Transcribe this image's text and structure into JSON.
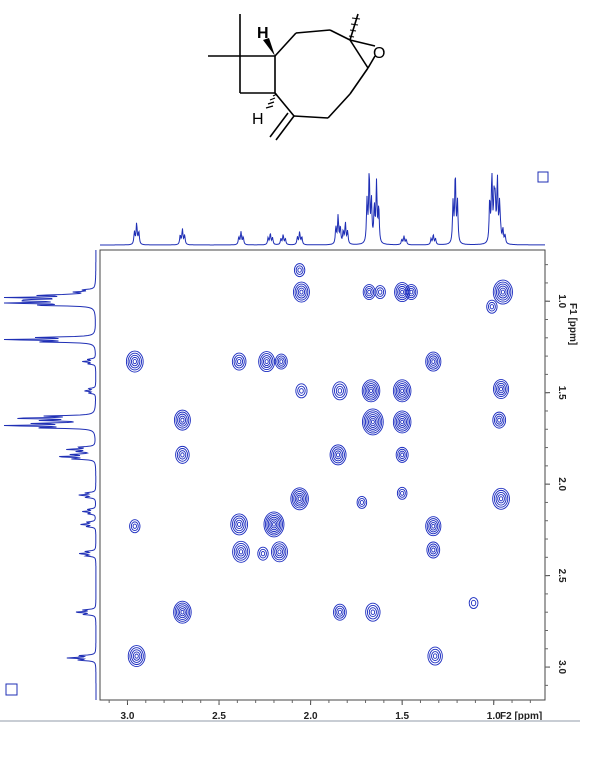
{
  "colors": {
    "trace": "#1f2fb5",
    "contour": "#1a2bbf",
    "axis": "#222222"
  },
  "molecule": {
    "atom_labels": {
      "h_top": "H",
      "h_bottom": "H",
      "oxygen": "O"
    }
  },
  "chart_data": {
    "type": "2d-nmr-cosy",
    "x_axis": {
      "label": "F2 [ppm]",
      "reversed": true,
      "range": [
        3.15,
        0.72
      ],
      "ticks": [
        3.0,
        2.5,
        2.0,
        1.5,
        1.0
      ],
      "tick_labels": [
        "3.0",
        "2.5",
        "2.0",
        "1.5",
        "1.0"
      ]
    },
    "y_axis": {
      "label": "F1 [ppm]",
      "range": [
        0.72,
        3.18
      ],
      "ticks": [
        1.0,
        1.5,
        2.0,
        2.5,
        3.0
      ],
      "tick_labels": [
        "1.0",
        "1.5",
        "2.0",
        "2.5",
        "3.0"
      ]
    },
    "f2_projection_peaks": [
      {
        "ppm": 2.95,
        "h": 0.3
      },
      {
        "ppm": 2.7,
        "h": 0.22
      },
      {
        "ppm": 2.38,
        "h": 0.18
      },
      {
        "ppm": 2.22,
        "h": 0.16
      },
      {
        "ppm": 2.15,
        "h": 0.14
      },
      {
        "ppm": 2.06,
        "h": 0.18
      },
      {
        "ppm": 1.85,
        "h": 0.4
      },
      {
        "ppm": 1.81,
        "h": 0.3
      },
      {
        "ppm": 1.68,
        "h": 1.0
      },
      {
        "ppm": 1.64,
        "h": 0.85
      },
      {
        "ppm": 1.49,
        "h": 0.12
      },
      {
        "ppm": 1.33,
        "h": 0.14
      },
      {
        "ppm": 1.21,
        "h": 0.98
      },
      {
        "ppm": 1.01,
        "h": 1.0
      },
      {
        "ppm": 0.98,
        "h": 0.9
      },
      {
        "ppm": 0.95,
        "h": 0.2
      }
    ],
    "cross_peaks": [
      {
        "f2": 2.05,
        "f1": 0.95,
        "i": 1.0
      },
      {
        "f2": 2.06,
        "f1": 0.83,
        "i": 0.3
      },
      {
        "f2": 1.68,
        "f1": 0.95,
        "i": 0.5
      },
      {
        "f2": 1.62,
        "f1": 0.95,
        "i": 0.3
      },
      {
        "f2": 1.5,
        "f1": 0.95,
        "i": 0.9
      },
      {
        "f2": 1.45,
        "f1": 0.95,
        "i": 0.5
      },
      {
        "f2": 0.95,
        "f1": 0.95,
        "i": 1.4
      },
      {
        "f2": 1.01,
        "f1": 1.03,
        "i": 0.3
      },
      {
        "f2": 2.96,
        "f1": 1.33,
        "i": 1.1
      },
      {
        "f2": 2.39,
        "f1": 1.33,
        "i": 0.7
      },
      {
        "f2": 2.24,
        "f1": 1.33,
        "i": 1.0
      },
      {
        "f2": 2.16,
        "f1": 1.33,
        "i": 0.5
      },
      {
        "f2": 1.33,
        "f1": 1.33,
        "i": 0.9
      },
      {
        "f2": 2.05,
        "f1": 1.49,
        "i": 0.4
      },
      {
        "f2": 1.84,
        "f1": 1.49,
        "i": 0.8
      },
      {
        "f2": 1.67,
        "f1": 1.49,
        "i": 1.2
      },
      {
        "f2": 1.5,
        "f1": 1.49,
        "i": 1.2
      },
      {
        "f2": 0.96,
        "f1": 1.48,
        "i": 0.9
      },
      {
        "f2": 2.7,
        "f1": 1.65,
        "i": 1.0
      },
      {
        "f2": 1.66,
        "f1": 1.66,
        "i": 1.6
      },
      {
        "f2": 1.5,
        "f1": 1.66,
        "i": 1.2
      },
      {
        "f2": 0.97,
        "f1": 1.65,
        "i": 0.6
      },
      {
        "f2": 2.7,
        "f1": 1.84,
        "i": 0.7
      },
      {
        "f2": 1.85,
        "f1": 1.84,
        "i": 1.0
      },
      {
        "f2": 1.5,
        "f1": 1.84,
        "i": 0.5
      },
      {
        "f2": 2.06,
        "f1": 2.08,
        "i": 1.2
      },
      {
        "f2": 0.96,
        "f1": 2.08,
        "i": 1.1
      },
      {
        "f2": 1.72,
        "f1": 2.1,
        "i": 0.2
      },
      {
        "f2": 1.5,
        "f1": 2.05,
        "i": 0.2
      },
      {
        "f2": 2.96,
        "f1": 2.23,
        "i": 0.3
      },
      {
        "f2": 2.39,
        "f1": 2.22,
        "i": 1.1
      },
      {
        "f2": 2.2,
        "f1": 2.22,
        "i": 1.5
      },
      {
        "f2": 1.33,
        "f1": 2.23,
        "i": 0.9
      },
      {
        "f2": 2.38,
        "f1": 2.37,
        "i": 1.1
      },
      {
        "f2": 2.17,
        "f1": 2.37,
        "i": 1.0
      },
      {
        "f2": 2.26,
        "f1": 2.38,
        "i": 0.3
      },
      {
        "f2": 1.33,
        "f1": 2.36,
        "i": 0.6
      },
      {
        "f2": 2.7,
        "f1": 2.7,
        "i": 1.2
      },
      {
        "f2": 1.84,
        "f1": 2.7,
        "i": 0.6
      },
      {
        "f2": 1.66,
        "f1": 2.7,
        "i": 0.8
      },
      {
        "f2": 1.11,
        "f1": 2.65,
        "i": 0.1
      },
      {
        "f2": 2.95,
        "f1": 2.94,
        "i": 1.1
      },
      {
        "f2": 1.32,
        "f1": 2.94,
        "i": 0.8
      }
    ]
  }
}
